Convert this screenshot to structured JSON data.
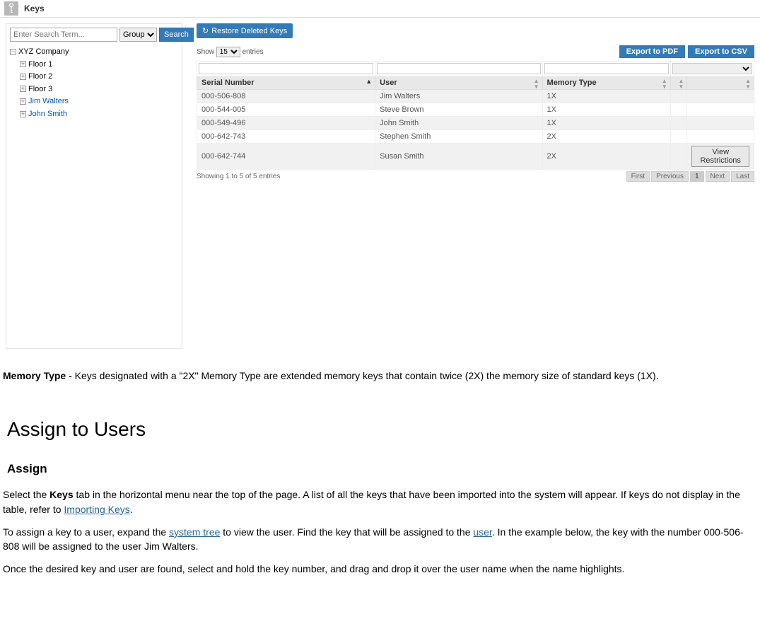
{
  "header": {
    "title": "Keys"
  },
  "sidebar": {
    "search_placeholder": "Enter Search Term...",
    "group_options": [
      "Group"
    ],
    "group_selected": "Group",
    "search_button": "Search",
    "tree": {
      "root": "XYZ Company",
      "children": [
        {
          "label": "Floor 1",
          "link": false,
          "expand": "+"
        },
        {
          "label": "Floor 2",
          "link": false,
          "expand": "+"
        },
        {
          "label": "Floor 3",
          "link": false,
          "expand": "+"
        },
        {
          "label": "Jim Walters",
          "link": true,
          "expand": "+"
        },
        {
          "label": "John Smith",
          "link": true,
          "expand": "+"
        }
      ]
    }
  },
  "main": {
    "restore_button": "Restore Deleted Keys",
    "show_prefix": "Show",
    "show_value": "15",
    "show_suffix": "entries",
    "export_pdf": "Export to PDF",
    "export_csv": "Export to CSV",
    "columns": {
      "serial": "Serial Number",
      "user": "User",
      "memory": "Memory Type",
      "col4": "",
      "col5": ""
    },
    "col_widths": {
      "serial": "32%",
      "user": "30%",
      "memory": "23%",
      "col4": "3%",
      "col5": "12%"
    },
    "rows": [
      {
        "serial": "000-506-808",
        "user": "Jim Walters",
        "memory": "1X"
      },
      {
        "serial": "000-544-005",
        "user": "Steve Brown",
        "memory": "1X"
      },
      {
        "serial": "000-549-496",
        "user": "John Smith",
        "memory": "1X"
      },
      {
        "serial": "000-642-743",
        "user": "Stephen Smith",
        "memory": "2X"
      },
      {
        "serial": "000-642-744",
        "user": "Susan Smith",
        "memory": "2X"
      }
    ],
    "view_restrictions": "View Restrictions",
    "info": "Showing 1 to 5 of 5 entries",
    "pagination": {
      "first": "First",
      "previous": "Previous",
      "page": "1",
      "next": "Next",
      "last": "Last"
    }
  },
  "doc": {
    "memory_note_bold": "Memory Type",
    "memory_note_rest": " - Keys designated with a \"2X\" Memory Type are extended memory keys that contain twice (2X) the memory size of standard keys (1X).",
    "h1": "Assign to Users",
    "h2": "Assign",
    "p1_a": "Select the ",
    "p1_bold": "Keys",
    "p1_b": " tab in the horizontal menu near the top of the page.  A list of all the keys that have been imported into the system will appear.  If keys do not display in the table, refer to ",
    "p1_link": "Importing Keys",
    "p1_c": ".",
    "p2_a": "To assign a key to a user, expand the ",
    "p2_link1": "system tree",
    "p2_b": " to view the user.  Find the key that will be assigned to the ",
    "p2_link2": "user",
    "p2_c": ".  In the example below, the key with the number 000-506-808 will be assigned to the user Jim Walters.",
    "p3": "Once the desired key and user are found, select and hold the key number, and drag and drop it over the user name when the name highlights."
  },
  "colors": {
    "primary": "#337ab7",
    "link": "#2a6496",
    "border": "#dddddd",
    "row_alt": "#f1f1f1",
    "header_bg": "#e8e8e8"
  }
}
